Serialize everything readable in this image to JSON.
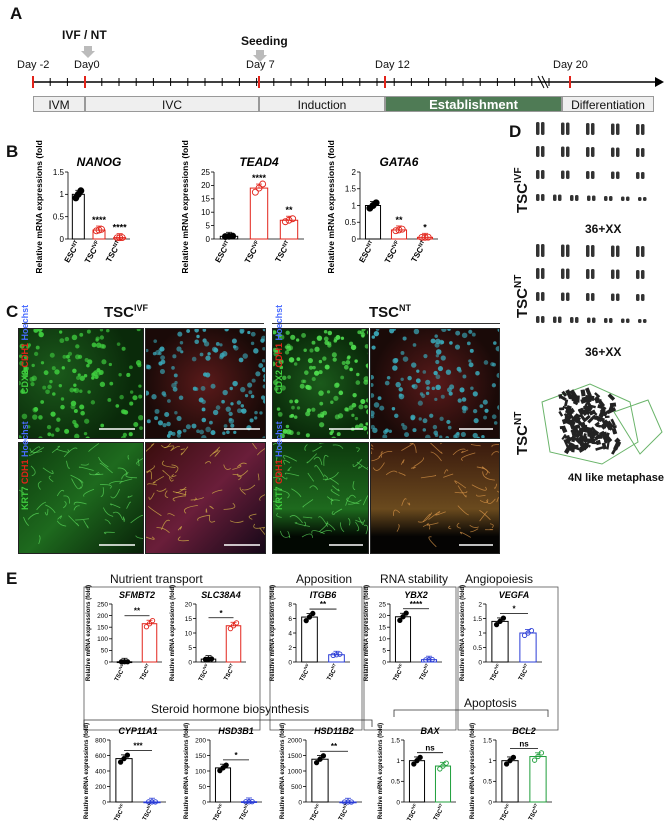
{
  "panelA": {
    "letter": "A",
    "ivf_nt": "IVF / NT",
    "seeding": "Seeding",
    "days": [
      "Day -2",
      "Day0",
      "Day 7",
      "Day 12",
      "Day 20"
    ],
    "phases": [
      "IVM",
      "IVC",
      "Induction",
      "Establishment",
      "Differentiation"
    ],
    "establishment_color": "#4f7b55"
  },
  "panelB": {
    "letter": "B"
  },
  "panelC": {
    "letter": "C",
    "tsc_ivf": "TSC",
    "tsc_ivf_sup": "IVF",
    "tsc_nt": "TSC",
    "tsc_nt_sup": "NT",
    "row1_label": [
      "CDX2",
      "CDH1",
      "Hoechst"
    ],
    "row2_label": [
      "KRT7",
      "CDH1",
      "Hoechst"
    ]
  },
  "panelD": {
    "letter": "D",
    "tsc": "TSC",
    "ivf": "IVF",
    "nt": "NT",
    "karyo1": "36+XX",
    "karyo2": "36+XX",
    "metaphase": "4N like metaphase"
  },
  "panelE": {
    "letter": "E",
    "groups": [
      "Nutrient transport",
      "Apposition",
      "RNA stability",
      "Angiopoiesis",
      "Steroid hormone biosynthesis",
      "Apoptosis"
    ]
  },
  "chart_data": [
    {
      "id": "NANOG",
      "type": "bar",
      "title": "NANOG",
      "ylabel": "Relative mRNA expressions (fold)",
      "ylim": [
        0,
        1.5
      ],
      "ticks": [
        0.0,
        0.5,
        1.0,
        1.5
      ],
      "categories": [
        "ESC",
        "TSC",
        "TSC"
      ],
      "category_sup": [
        "NT",
        "IVF",
        "NT"
      ],
      "values": [
        1.0,
        0.2,
        0.03
      ],
      "sig": [
        "",
        "****",
        "****"
      ],
      "colors": [
        "#000000",
        "#e2231a",
        "#e2231a"
      ]
    },
    {
      "id": "TEAD4",
      "type": "bar",
      "title": "TEAD4",
      "ylabel": "Relative mRNA expressions (fold)",
      "ylim": [
        0,
        25
      ],
      "ticks": [
        0,
        5,
        10,
        15,
        20,
        25
      ],
      "categories": [
        "ESC",
        "TSC",
        "TSC"
      ],
      "category_sup": [
        "NT",
        "IVF",
        "NT"
      ],
      "values": [
        1.0,
        19.0,
        7.0
      ],
      "sig": [
        "",
        "****",
        "**"
      ],
      "colors": [
        "#000000",
        "#e2231a",
        "#e2231a"
      ]
    },
    {
      "id": "GATA6",
      "type": "bar",
      "title": "GATA6",
      "ylabel": "Relative mRNA expressions (fold)",
      "ylim": [
        0,
        2.0
      ],
      "ticks": [
        0.0,
        0.5,
        1.0,
        1.5,
        2.0
      ],
      "categories": [
        "ESC",
        "TSC",
        "TSC"
      ],
      "category_sup": [
        "NT",
        "IVF",
        "NT"
      ],
      "values": [
        1.0,
        0.27,
        0.05
      ],
      "sig": [
        "",
        "**",
        "*"
      ],
      "colors": [
        "#000000",
        "#e2231a",
        "#e2231a"
      ]
    },
    {
      "id": "SFMBT2",
      "type": "bar",
      "title": "SFMBT2",
      "ylabel": "Relative mRNA expressions (fold)",
      "ylim": [
        0,
        250
      ],
      "ticks": [
        0,
        50,
        100,
        150,
        200,
        250
      ],
      "categories": [
        "TSC",
        "TSC"
      ],
      "category_sup": [
        "IVF",
        "NT"
      ],
      "values": [
        1,
        165
      ],
      "sig": "**",
      "colors": [
        "#000000",
        "#e2231a"
      ]
    },
    {
      "id": "SLC38A4",
      "type": "bar",
      "title": "SLC38A4",
      "ylabel": "Relative mRNA expressions (fold)",
      "ylim": [
        0,
        20
      ],
      "ticks": [
        0,
        5,
        10,
        15,
        20
      ],
      "categories": [
        "TSC",
        "TSC"
      ],
      "category_sup": [
        "IVF",
        "NT"
      ],
      "values": [
        1,
        12.5
      ],
      "sig": "*",
      "colors": [
        "#000000",
        "#e2231a"
      ]
    },
    {
      "id": "ITGB6",
      "type": "bar",
      "title": "ITGB6",
      "ylabel": "Relative mRNA expressions (fold)",
      "ylim": [
        0,
        8
      ],
      "ticks": [
        0,
        2,
        4,
        6,
        8
      ],
      "categories": [
        "TSC",
        "TSC"
      ],
      "category_sup": [
        "IVF",
        "NT"
      ],
      "values": [
        6.2,
        1.0
      ],
      "sig": "**",
      "colors": [
        "#000000",
        "#2a3cd6"
      ]
    },
    {
      "id": "YBX2",
      "type": "bar",
      "title": "YBX2",
      "ylabel": "Relative mRNA expressions (fold)",
      "ylim": [
        0,
        25
      ],
      "ticks": [
        0,
        5,
        10,
        15,
        20,
        25
      ],
      "categories": [
        "TSC",
        "TSC"
      ],
      "category_sup": [
        "IVF",
        "NT"
      ],
      "values": [
        19.5,
        1.0
      ],
      "sig": "****",
      "colors": [
        "#000000",
        "#2a3cd6"
      ]
    },
    {
      "id": "VEGFA",
      "type": "bar",
      "title": "VEGFA",
      "ylabel": "Relative mRNA expressions (fold)",
      "ylim": [
        0,
        2.0
      ],
      "ticks": [
        0.0,
        0.5,
        1.0,
        1.5,
        2.0
      ],
      "categories": [
        "TSC",
        "TSC"
      ],
      "category_sup": [
        "IVF",
        "NT"
      ],
      "values": [
        1.4,
        1.0
      ],
      "sig": "*",
      "colors": [
        "#000000",
        "#2a3cd6"
      ]
    },
    {
      "id": "CYP11A1",
      "type": "bar",
      "title": "CYP11A1",
      "ylabel": "Relative mRNA expressions (fold)",
      "ylim": [
        0,
        800
      ],
      "ticks": [
        0,
        200,
        400,
        600,
        800
      ],
      "categories": [
        "TSC",
        "TSC"
      ],
      "category_sup": [
        "IVF",
        "NT"
      ],
      "values": [
        560,
        1
      ],
      "sig": "***",
      "colors": [
        "#000000",
        "#2a3cd6"
      ]
    },
    {
      "id": "HSD3B1",
      "type": "bar",
      "title": "HSD3B1",
      "ylabel": "Relative mRNA expressions (fold)",
      "ylim": [
        0,
        200
      ],
      "ticks": [
        0,
        50,
        100,
        150,
        200
      ],
      "categories": [
        "TSC",
        "TSC"
      ],
      "category_sup": [
        "IVF",
        "NT"
      ],
      "values": [
        110,
        1
      ],
      "sig": "*",
      "colors": [
        "#000000",
        "#2a3cd6"
      ]
    },
    {
      "id": "HSD11B2",
      "type": "bar",
      "title": "HSD11B2",
      "ylabel": "Relative mRNA expressions (fold)",
      "ylim": [
        0,
        2000
      ],
      "ticks": [
        0,
        500,
        1000,
        1500,
        2000
      ],
      "categories": [
        "TSC",
        "TSC"
      ],
      "category_sup": [
        "IVF",
        "NT"
      ],
      "values": [
        1380,
        1
      ],
      "sig": "**",
      "colors": [
        "#000000",
        "#2a3cd6"
      ]
    },
    {
      "id": "BAX",
      "type": "bar",
      "title": "BAX",
      "ylabel": "Relative mRNA expressions (fold)",
      "ylim": [
        0,
        1.5
      ],
      "ticks": [
        0.0,
        0.5,
        1.0,
        1.5
      ],
      "categories": [
        "TSC",
        "TSC"
      ],
      "category_sup": [
        "IVF",
        "NT"
      ],
      "values": [
        1.0,
        0.87
      ],
      "sig": "ns",
      "colors": [
        "#000000",
        "#1e9e3a"
      ]
    },
    {
      "id": "BCL2",
      "type": "bar",
      "title": "BCL2",
      "ylabel": "Relative mRNA expressions (fold)",
      "ylim": [
        0,
        1.5
      ],
      "ticks": [
        0.0,
        0.5,
        1.0,
        1.5
      ],
      "categories": [
        "TSC",
        "TSC"
      ],
      "category_sup": [
        "IVF",
        "NT"
      ],
      "values": [
        1.0,
        1.1
      ],
      "sig": "ns",
      "colors": [
        "#000000",
        "#1e9e3a"
      ]
    }
  ]
}
